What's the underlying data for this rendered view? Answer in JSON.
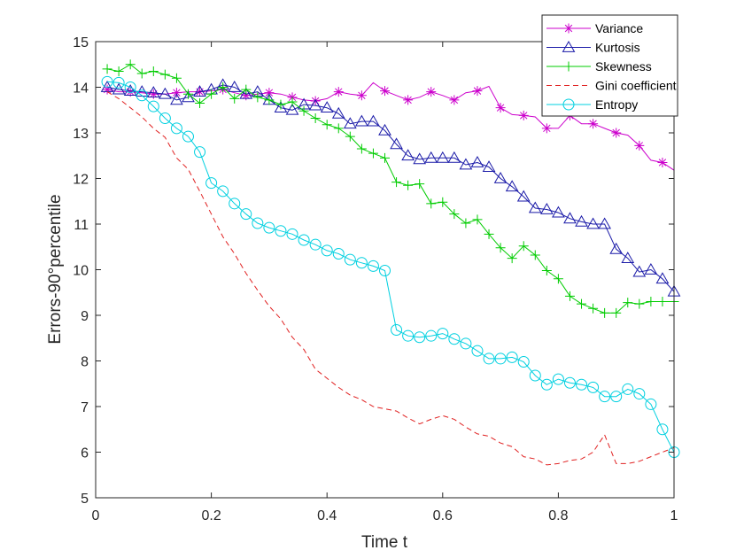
{
  "chart_data": {
    "type": "line",
    "title": "",
    "xlabel": "Time t",
    "ylabel": "Errors-90°percentile",
    "xlim": [
      0,
      1
    ],
    "ylim": [
      5,
      15
    ],
    "xticks": [
      0,
      0.2,
      0.4,
      0.6,
      0.8,
      1
    ],
    "xtick_labels": [
      "0",
      "0.2",
      "0.4",
      "0.6",
      "0.8",
      "1"
    ],
    "yticks": [
      5,
      6,
      7,
      8,
      9,
      10,
      11,
      12,
      13,
      14,
      15
    ],
    "ytick_labels": [
      "5",
      "6",
      "7",
      "8",
      "9",
      "10",
      "11",
      "12",
      "13",
      "14",
      "15"
    ],
    "grid": false,
    "legend_position": "top-right",
    "x": [
      0.02,
      0.04,
      0.06,
      0.08,
      0.1,
      0.12,
      0.14,
      0.16,
      0.18,
      0.2,
      0.22,
      0.24,
      0.26,
      0.28,
      0.3,
      0.32,
      0.34,
      0.36,
      0.38,
      0.4,
      0.42,
      0.44,
      0.46,
      0.48,
      0.5,
      0.52,
      0.54,
      0.56,
      0.58,
      0.6,
      0.62,
      0.64,
      0.66,
      0.68,
      0.7,
      0.72,
      0.74,
      0.76,
      0.78,
      0.8,
      0.82,
      0.84,
      0.86,
      0.88,
      0.9,
      0.92,
      0.94,
      0.96,
      0.98,
      1.0
    ],
    "series": [
      {
        "name": "Variance",
        "color": "#cc00cc",
        "marker": "asterisk",
        "marker_every": 2,
        "dashed": false,
        "values": [
          13.95,
          13.9,
          13.9,
          13.88,
          13.85,
          13.85,
          13.88,
          13.9,
          13.9,
          13.92,
          13.95,
          13.88,
          13.82,
          13.85,
          13.88,
          13.85,
          13.78,
          13.72,
          13.7,
          13.75,
          13.9,
          13.85,
          13.82,
          14.1,
          13.92,
          13.82,
          13.72,
          13.78,
          13.9,
          13.82,
          13.72,
          13.88,
          13.92,
          14.02,
          13.55,
          13.4,
          13.38,
          13.35,
          13.1,
          13.1,
          13.38,
          13.2,
          13.2,
          13.1,
          13.0,
          12.95,
          12.72,
          12.4,
          12.35,
          12.18
        ]
      },
      {
        "name": "Kurtosis",
        "color": "#1a1aa8",
        "marker": "triangle",
        "marker_every": 1,
        "dashed": false,
        "values": [
          14.0,
          13.95,
          13.92,
          13.9,
          13.88,
          13.85,
          13.72,
          13.78,
          13.9,
          13.95,
          14.05,
          14.0,
          13.85,
          13.9,
          13.72,
          13.55,
          13.5,
          13.62,
          13.6,
          13.55,
          13.42,
          13.2,
          13.25,
          13.25,
          13.05,
          12.75,
          12.5,
          12.42,
          12.45,
          12.45,
          12.45,
          12.3,
          12.35,
          12.25,
          12.0,
          11.82,
          11.6,
          11.35,
          11.32,
          11.25,
          11.12,
          11.05,
          11.0,
          11.0,
          10.45,
          10.25,
          9.95,
          10.0,
          9.8,
          9.52
        ]
      },
      {
        "name": "Skewness",
        "color": "#00cc00",
        "marker": "plus",
        "marker_every": 1,
        "dashed": false,
        "values": [
          14.4,
          14.35,
          14.5,
          14.3,
          14.35,
          14.28,
          14.2,
          13.85,
          13.65,
          13.85,
          14.0,
          13.75,
          13.95,
          13.78,
          13.72,
          13.62,
          13.68,
          13.48,
          13.32,
          13.18,
          13.1,
          12.92,
          12.65,
          12.55,
          12.45,
          11.92,
          11.85,
          11.88,
          11.45,
          11.48,
          11.22,
          11.02,
          11.1,
          10.78,
          10.48,
          10.25,
          10.52,
          10.32,
          9.98,
          9.8,
          9.42,
          9.25,
          9.15,
          9.05,
          9.05,
          9.28,
          9.25,
          9.3,
          9.3,
          9.3
        ]
      },
      {
        "name": "Gini coefficient",
        "color": "#e02020",
        "marker": "none",
        "marker_every": 1,
        "dashed": true,
        "values": [
          13.9,
          13.75,
          13.55,
          13.35,
          13.1,
          12.9,
          12.45,
          12.2,
          11.72,
          11.22,
          10.72,
          10.35,
          9.92,
          9.55,
          9.2,
          8.92,
          8.52,
          8.25,
          7.82,
          7.62,
          7.42,
          7.25,
          7.15,
          7.0,
          6.95,
          6.9,
          6.75,
          6.62,
          6.72,
          6.8,
          6.72,
          6.55,
          6.4,
          6.35,
          6.2,
          6.12,
          5.9,
          5.85,
          5.72,
          5.75,
          5.82,
          5.85,
          6.0,
          6.38,
          5.75,
          5.75,
          5.8,
          5.9,
          6.0,
          6.1
        ]
      },
      {
        "name": "Entropy",
        "color": "#00d0e0",
        "marker": "circle",
        "marker_every": 1,
        "dashed": false,
        "values": [
          14.12,
          14.1,
          14.0,
          13.82,
          13.58,
          13.32,
          13.1,
          12.92,
          12.58,
          11.9,
          11.72,
          11.45,
          11.22,
          11.02,
          10.92,
          10.85,
          10.78,
          10.65,
          10.55,
          10.42,
          10.35,
          10.22,
          10.15,
          10.08,
          9.98,
          8.68,
          8.55,
          8.52,
          8.55,
          8.6,
          8.48,
          8.38,
          8.22,
          8.05,
          8.05,
          8.08,
          7.98,
          7.68,
          7.48,
          7.6,
          7.52,
          7.48,
          7.42,
          7.22,
          7.22,
          7.38,
          7.28,
          7.05,
          6.5,
          6.0
        ]
      }
    ]
  }
}
